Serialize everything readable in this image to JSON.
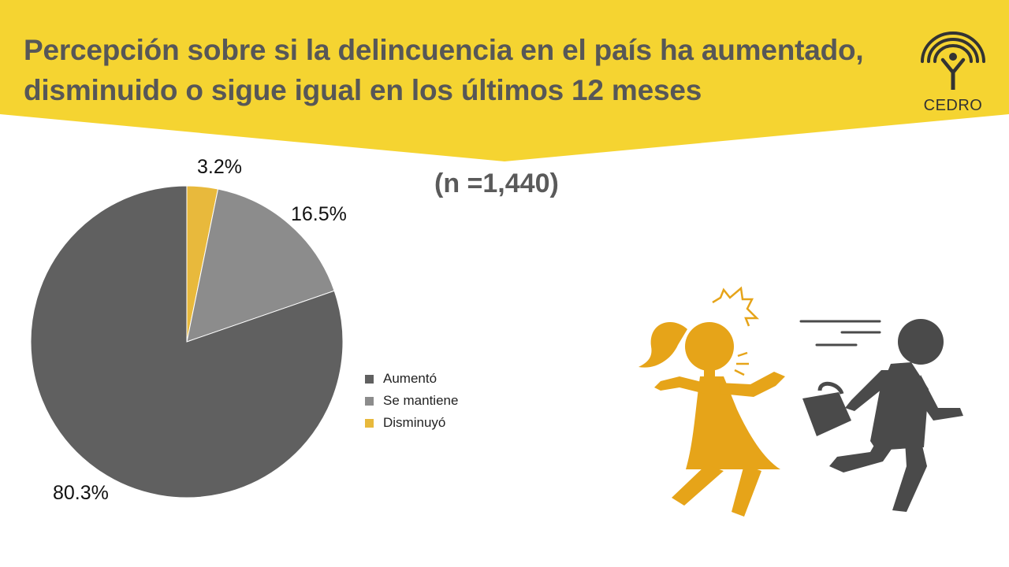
{
  "title": {
    "line1": "Percepción sobre si la delincuencia en el país ha aumentado,",
    "line2": "disminuido o sigue igual en los últimos 12 meses"
  },
  "sample_size": "(n =1,440)",
  "logo": {
    "text": "CEDRO",
    "icon": "cedro-logo-icon"
  },
  "colors": {
    "banner": "#F5D431",
    "title_text": "#575757",
    "aumento": "#606060",
    "se_mantiene": "#8C8C8C",
    "disminuyo": "#E8B93C",
    "girl": "#E6A419",
    "man": "#4A4A4A"
  },
  "illustration": {
    "icons": [
      "girl-icon",
      "impact-burst-icon",
      "thief-running-icon",
      "stolen-purse-icon",
      "speed-lines-icon"
    ]
  },
  "chart_data": {
    "type": "pie",
    "title": "Percepción sobre si la delincuencia en el país ha aumentado, disminuido o sigue igual en los últimos 12 meses",
    "categories": [
      "Aumentó",
      "Se mantiene",
      "Disminuyó"
    ],
    "values": [
      80.3,
      16.5,
      3.2
    ],
    "labels": [
      "80.3%",
      "16.5%",
      "3.2%"
    ],
    "colors": [
      "#606060",
      "#8C8C8C",
      "#E8B93C"
    ],
    "start": "top",
    "direction": "clockwise",
    "slice_order": [
      "Disminuyó",
      "Se mantiene",
      "Aumentó"
    ],
    "legend_position": "right"
  }
}
